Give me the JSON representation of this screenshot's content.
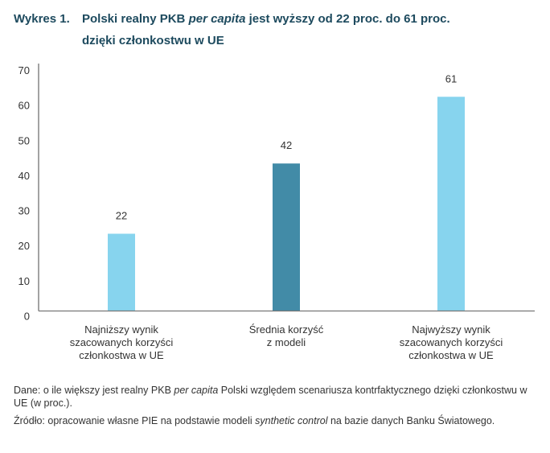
{
  "title": {
    "number": "Wykres 1.",
    "line1_pre": "Polski realny PKB ",
    "line1_italic": "per capita",
    "line1_post": " jest wyższy od 22 proc. do 61 proc.",
    "line2": "dzięki członkostwu w UE"
  },
  "chart_data": {
    "type": "bar",
    "categories": [
      "Najniższy wynik szacowanych korzyści członkostwa w UE",
      "Średnia korzyść z modeli",
      "Najwyższy wynik szacowanych korzyści członkostwa w UE"
    ],
    "values": [
      22,
      42,
      61
    ],
    "data_labels": [
      "22",
      "42",
      "61"
    ],
    "colors": [
      "#87d4ee",
      "#428ba7",
      "#87d4ee"
    ],
    "ylim": [
      0,
      70
    ],
    "yticks": [
      0,
      10,
      20,
      30,
      40,
      50,
      60,
      70
    ],
    "ytick_labels": [
      "0",
      "10",
      "20",
      "30",
      "40",
      "50",
      "60",
      "70"
    ],
    "grid": false
  },
  "category_lines": [
    [
      "Najniższy wynik",
      "szacowanych korzyści",
      "członkostwa w UE"
    ],
    [
      "Średnia korzyść",
      "z modeli"
    ],
    [
      "Najwyższy wynik",
      "szacowanych korzyści",
      "członkostwa w UE"
    ]
  ],
  "notes": {
    "data_pre": "Dane: o ile większy jest realny PKB ",
    "data_italic": "per capita",
    "data_post": " Polski względem scenariusza kontrfaktycznego dzięki członkostwu w UE (w proc.).",
    "source_pre": "Źródło: opracowanie własne PIE na podstawie modeli ",
    "source_italic": "synthetic control",
    "source_post": " na bazie danych Banku Światowego."
  }
}
